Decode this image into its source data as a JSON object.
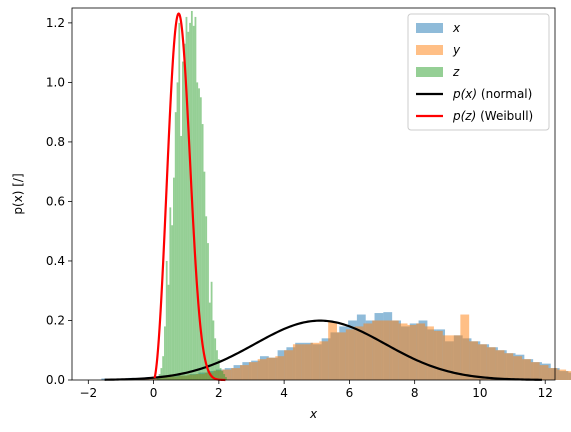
{
  "chart_data": {
    "type": "bar",
    "xlabel": "x",
    "ylabel": "p(x) [/]",
    "xlim": [
      -2.5,
      12.3
    ],
    "ylim": [
      0,
      1.25
    ],
    "x_ticks": [
      -2,
      0,
      2,
      4,
      6,
      8,
      10,
      12
    ],
    "y_ticks": [
      0.0,
      0.2,
      0.4,
      0.6,
      0.8,
      1.0,
      1.2
    ],
    "x_tick_labels": [
      "−2",
      "0",
      "2",
      "4",
      "6",
      "8",
      "10",
      "12"
    ],
    "y_tick_labels": [
      "0.0",
      "0.2",
      "0.4",
      "0.6",
      "0.8",
      "1.0",
      "1.2"
    ],
    "legend_position": "top-right",
    "histograms": [
      {
        "name": "x",
        "color": "#1f77b4",
        "opacity": 0.5,
        "bins_start": -1.6,
        "bin_width": 0.27,
        "densities": [
          0.005,
          0.0,
          0.005,
          0.007,
          0.005,
          0.01,
          0.01,
          0.012,
          0.018,
          0.015,
          0.02,
          0.025,
          0.03,
          0.035,
          0.04,
          0.05,
          0.06,
          0.065,
          0.08,
          0.075,
          0.1,
          0.11,
          0.125,
          0.125,
          0.12,
          0.14,
          0.16,
          0.18,
          0.2,
          0.22,
          0.2,
          0.225,
          0.228,
          0.2,
          0.18,
          0.19,
          0.2,
          0.17,
          0.17,
          0.13,
          0.15,
          0.14,
          0.13,
          0.12,
          0.11,
          0.1,
          0.09,
          0.085,
          0.07,
          0.06,
          0.055,
          0.04,
          0.03,
          0.025,
          0.02,
          0.015,
          0.01,
          0.005
        ]
      },
      {
        "name": "y",
        "color": "#ff7f0e",
        "opacity": 0.5,
        "bins_start": -1.4,
        "bin_width": 0.27,
        "densities": [
          0.005,
          0.0,
          0.005,
          0.006,
          0.006,
          0.008,
          0.01,
          0.012,
          0.015,
          0.018,
          0.02,
          0.025,
          0.032,
          0.035,
          0.04,
          0.05,
          0.06,
          0.07,
          0.075,
          0.08,
          0.1,
          0.12,
          0.12,
          0.125,
          0.13,
          0.195,
          0.16,
          0.17,
          0.18,
          0.19,
          0.2,
          0.2,
          0.2,
          0.19,
          0.185,
          0.19,
          0.18,
          0.165,
          0.15,
          0.15,
          0.22,
          0.13,
          0.12,
          0.11,
          0.1,
          0.09,
          0.08,
          0.07,
          0.06,
          0.05,
          0.04,
          0.035,
          0.03,
          0.02,
          0.015,
          0.01,
          0.005
        ]
      },
      {
        "name": "z",
        "color": "#2ca02c",
        "opacity": 0.5,
        "bins_start": 0.1,
        "bin_width": 0.055,
        "densities": [
          0.01,
          0.02,
          0.04,
          0.08,
          0.18,
          0.4,
          0.32,
          0.58,
          0.52,
          0.68,
          0.9,
          1.0,
          1.2,
          0.82,
          1.07,
          1.13,
          1.22,
          1.17,
          1.2,
          1.24,
          1.19,
          1.22,
          1.0,
          0.98,
          0.95,
          0.86,
          0.7,
          0.55,
          0.46,
          0.26,
          0.33,
          0.2,
          0.14,
          0.1,
          0.07,
          0.04,
          0.03,
          0.02,
          0.01
        ]
      }
    ],
    "curves": [
      {
        "name": "p(x) (normal)",
        "color": "#000000",
        "type": "normal",
        "mu": 5.1,
        "sigma": 2.0,
        "x_range": [
          -1.5,
          11.9
        ]
      },
      {
        "name": "p(z) (Weibull)",
        "color": "#ff0000",
        "type": "weibull",
        "k": 2.8,
        "lambda": 0.9,
        "x_range": [
          0.03,
          2.2
        ]
      }
    ],
    "legend": [
      {
        "kind": "patch",
        "color": "#1f77b4",
        "opacity": 0.5,
        "var": "x",
        "suffix": ""
      },
      {
        "kind": "patch",
        "color": "#ff7f0e",
        "opacity": 0.5,
        "var": "y",
        "suffix": ""
      },
      {
        "kind": "patch",
        "color": "#2ca02c",
        "opacity": 0.5,
        "var": "z",
        "suffix": ""
      },
      {
        "kind": "line",
        "color": "#000000",
        "var": "p(x)",
        "suffix": " (normal)"
      },
      {
        "kind": "line",
        "color": "#ff0000",
        "var": "p(z)",
        "suffix": " (Weibull)"
      }
    ]
  }
}
